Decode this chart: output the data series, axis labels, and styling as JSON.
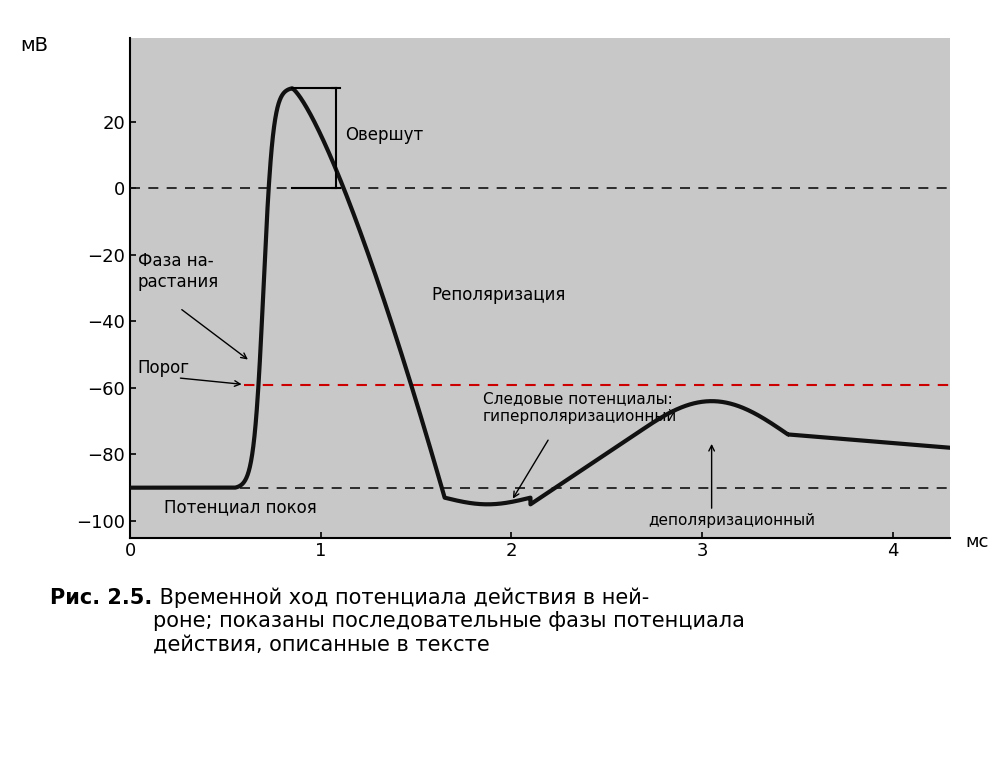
{
  "background_color": "#c8c8c8",
  "plot_bg_color": "#c8c8c8",
  "xlim": [
    0,
    4.3
  ],
  "ylim": [
    -105,
    45
  ],
  "xticks": [
    0,
    1,
    2,
    3,
    4
  ],
  "yticks": [
    -100,
    -80,
    -60,
    -40,
    -20,
    0,
    20
  ],
  "xlabel": "мс",
  "ylabel": "мВ",
  "resting_potential": -90,
  "threshold": -59,
  "peak": 30,
  "line_color": "#111111",
  "line_width": 3.0,
  "dashed_color_black": "#111111",
  "dashed_color_red": "#cc0000",
  "font_size_labels": 13,
  "font_size_ticks": 13,
  "font_size_annot": 12,
  "font_size_caption": 15,
  "caption_bold": "Рис. 2.5.",
  "caption_normal": " Временной ход потенциала действия в ней-\nроне; показаны последовательные фазы потенциала\nдействия, описанные в тексте"
}
